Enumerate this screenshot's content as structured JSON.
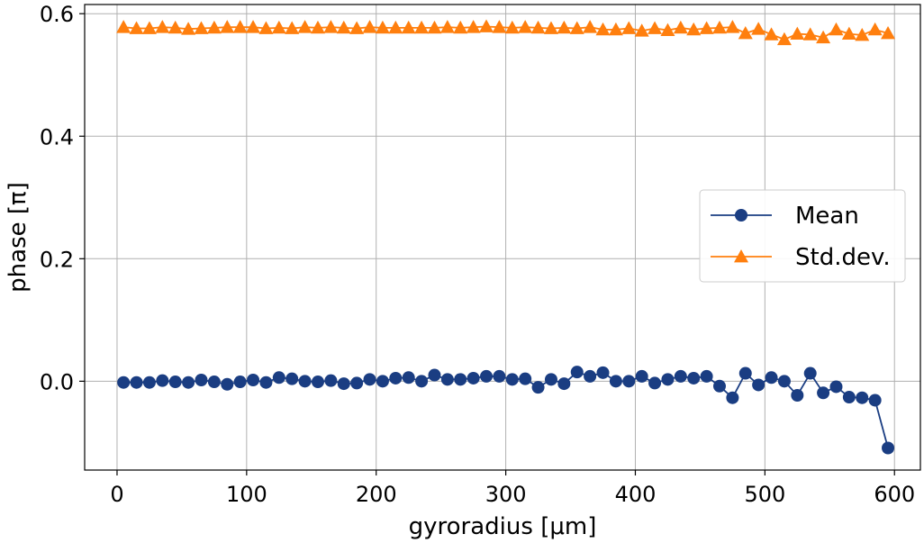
{
  "chart_data": {
    "type": "line",
    "xlabel": "gyroradius [μm]",
    "ylabel": "phase [π]",
    "xlim": [
      -25,
      620
    ],
    "ylim": [
      -0.145,
      0.615
    ],
    "xticks": [
      0,
      100,
      200,
      300,
      400,
      500,
      600
    ],
    "yticks": [
      0.0,
      0.2,
      0.4,
      0.6
    ],
    "xtick_labels": [
      "0",
      "100",
      "200",
      "300",
      "400",
      "500",
      "600"
    ],
    "ytick_labels": [
      "0.0",
      "0.2",
      "0.4",
      "0.6"
    ],
    "grid": true,
    "legend_position": "center-right",
    "x": [
      5,
      15,
      25,
      35,
      45,
      55,
      65,
      75,
      85,
      95,
      105,
      115,
      125,
      135,
      145,
      155,
      165,
      175,
      185,
      195,
      205,
      215,
      225,
      235,
      245,
      255,
      265,
      275,
      285,
      295,
      305,
      315,
      325,
      335,
      345,
      355,
      365,
      375,
      385,
      395,
      405,
      415,
      425,
      435,
      445,
      455,
      465,
      475,
      485,
      495,
      505,
      515,
      525,
      535,
      545,
      555,
      565,
      575,
      585,
      595
    ],
    "series": [
      {
        "name": "Mean",
        "color": "#1a3d82",
        "marker": "circle",
        "values": [
          -0.002,
          -0.002,
          -0.002,
          0.001,
          -0.001,
          -0.002,
          0.002,
          -0.001,
          -0.005,
          -0.001,
          0.002,
          -0.002,
          0.006,
          0.004,
          0.0,
          -0.001,
          0.001,
          -0.004,
          -0.003,
          0.003,
          0.0,
          0.005,
          0.006,
          0.0,
          0.01,
          0.003,
          0.003,
          0.005,
          0.008,
          0.008,
          0.003,
          0.004,
          -0.01,
          0.003,
          -0.004,
          0.015,
          0.008,
          0.014,
          0.0,
          0.0,
          0.008,
          -0.003,
          0.003,
          0.008,
          0.005,
          0.008,
          -0.008,
          -0.027,
          0.013,
          -0.006,
          0.006,
          0.0,
          -0.023,
          0.013,
          -0.019,
          -0.009,
          -0.026,
          -0.027,
          -0.031,
          -0.109
        ]
      },
      {
        "name": "Std.dev.",
        "color": "#ff7f0e",
        "marker": "triangle",
        "values": [
          0.578,
          0.576,
          0.576,
          0.578,
          0.577,
          0.575,
          0.576,
          0.577,
          0.578,
          0.578,
          0.578,
          0.576,
          0.577,
          0.576,
          0.578,
          0.577,
          0.578,
          0.577,
          0.576,
          0.578,
          0.577,
          0.577,
          0.577,
          0.577,
          0.577,
          0.578,
          0.577,
          0.578,
          0.579,
          0.578,
          0.577,
          0.578,
          0.577,
          0.576,
          0.577,
          0.576,
          0.578,
          0.574,
          0.574,
          0.576,
          0.572,
          0.576,
          0.573,
          0.577,
          0.574,
          0.576,
          0.577,
          0.578,
          0.568,
          0.575,
          0.566,
          0.558,
          0.567,
          0.566,
          0.561,
          0.574,
          0.567,
          0.565,
          0.574,
          0.568
        ]
      }
    ]
  }
}
